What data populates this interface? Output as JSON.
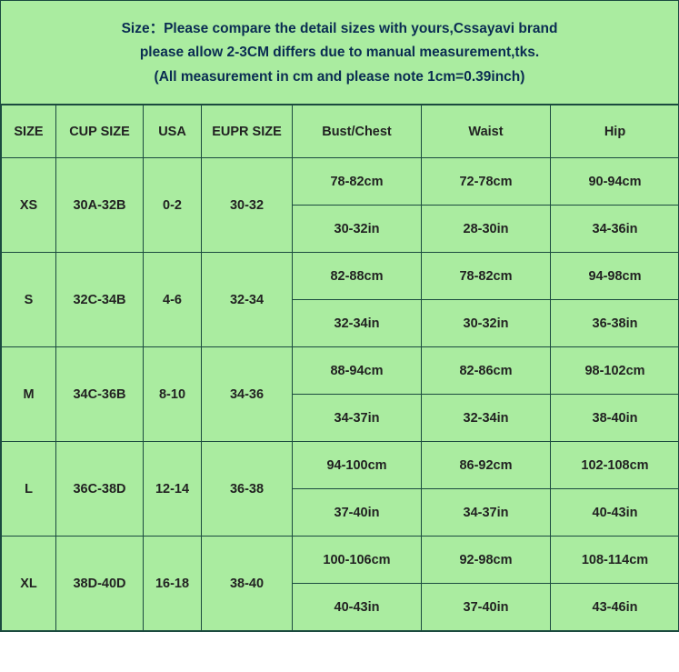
{
  "colors": {
    "background": "#aaeca0",
    "border": "#1b4a3f",
    "header_text": "#0a2c52",
    "cell_text": "#222222"
  },
  "header": {
    "line1": "Size：Please compare the detail sizes with yours,Cssayavi brand",
    "line2": "please allow 2-3CM differs due to manual measurement,tks.",
    "line3": "(All measurement in cm and please note 1cm=0.39inch)"
  },
  "columns": [
    "SIZE",
    "CUP SIZE",
    "USA",
    "EUPR SIZE",
    "Bust/Chest",
    "Waist",
    "Hip"
  ],
  "rows": [
    {
      "size": "XS",
      "cup": "30A-32B",
      "usa": "0-2",
      "eupr": "30-32",
      "bust_cm": "78-82cm",
      "waist_cm": "72-78cm",
      "hip_cm": "90-94cm",
      "bust_in": "30-32in",
      "waist_in": "28-30in",
      "hip_in": "34-36in"
    },
    {
      "size": "S",
      "cup": "32C-34B",
      "usa": "4-6",
      "eupr": "32-34",
      "bust_cm": "82-88cm",
      "waist_cm": "78-82cm",
      "hip_cm": "94-98cm",
      "bust_in": "32-34in",
      "waist_in": "30-32in",
      "hip_in": "36-38in"
    },
    {
      "size": "M",
      "cup": "34C-36B",
      "usa": "8-10",
      "eupr": "34-36",
      "bust_cm": "88-94cm",
      "waist_cm": "82-86cm",
      "hip_cm": "98-102cm",
      "bust_in": "34-37in",
      "waist_in": "32-34in",
      "hip_in": "38-40in"
    },
    {
      "size": "L",
      "cup": "36C-38D",
      "usa": "12-14",
      "eupr": "36-38",
      "bust_cm": "94-100cm",
      "waist_cm": "86-92cm",
      "hip_cm": "102-108cm",
      "bust_in": "37-40in",
      "waist_in": "34-37in",
      "hip_in": "40-43in"
    },
    {
      "size": "XL",
      "cup": "38D-40D",
      "usa": "16-18",
      "eupr": "38-40",
      "bust_cm": "100-106cm",
      "waist_cm": "92-98cm",
      "hip_cm": "108-114cm",
      "bust_in": "40-43in",
      "waist_in": "37-40in",
      "hip_in": "43-46in"
    }
  ]
}
